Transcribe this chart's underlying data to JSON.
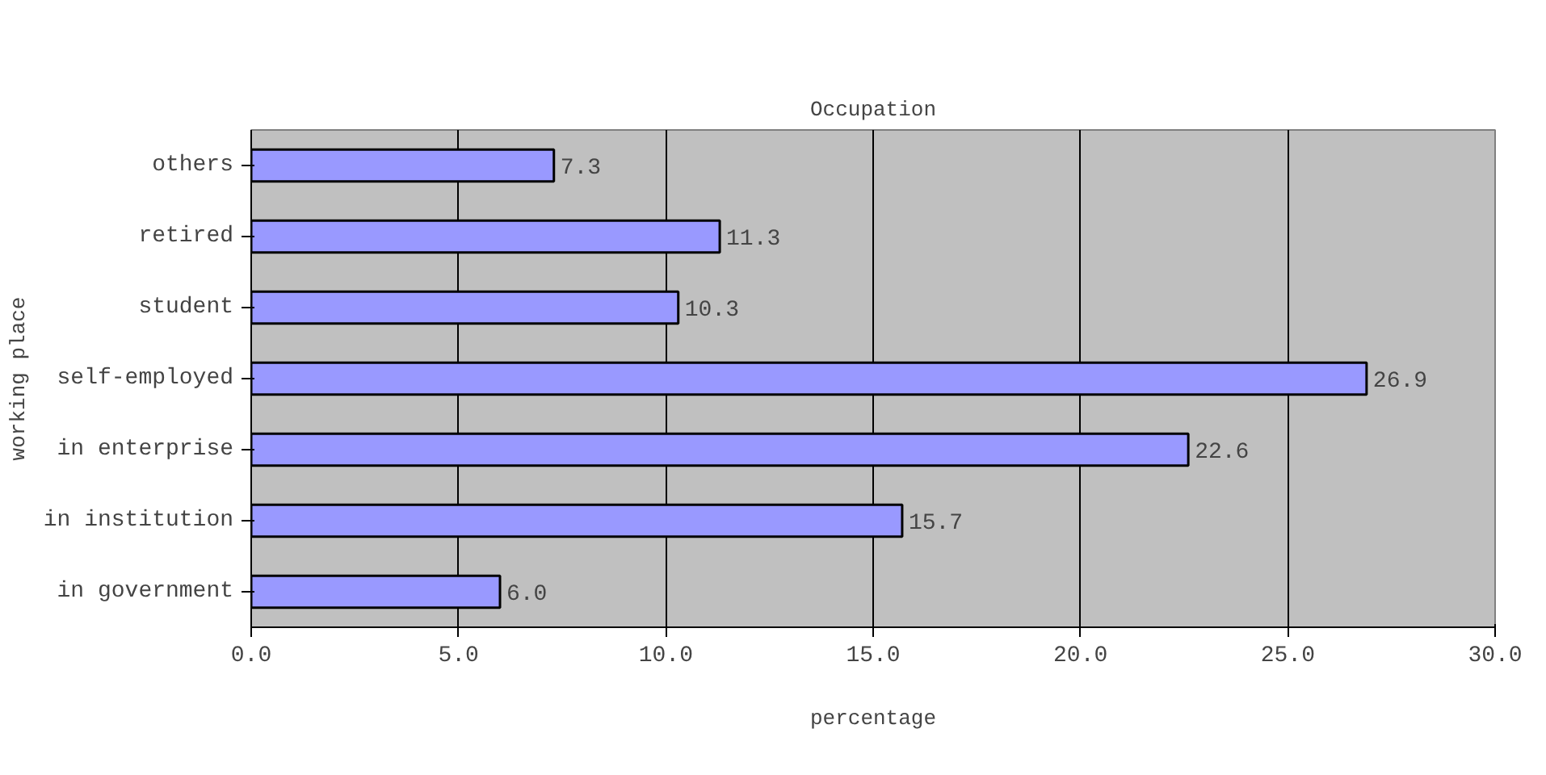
{
  "chart_data": {
    "type": "bar",
    "orientation": "horizontal",
    "title": "Occupation",
    "xlabel": "percentage",
    "ylabel": "working place",
    "categories": [
      "others",
      "retired",
      "student",
      "self-employed",
      "in enterprise",
      "in institution",
      "in government"
    ],
    "values": [
      7.3,
      11.3,
      10.3,
      26.9,
      22.6,
      15.7,
      6.0
    ],
    "value_labels": [
      "7.3",
      "11.3",
      "10.3",
      "26.9",
      "22.6",
      "15.7",
      "6.0"
    ],
    "color": "#9999ff",
    "xlim": [
      0,
      30
    ],
    "xticks": [
      {
        "value": 0,
        "label": "0.0"
      },
      {
        "value": 5,
        "label": "5.0"
      },
      {
        "value": 10,
        "label": "10.0"
      },
      {
        "value": 15,
        "label": "15.0"
      },
      {
        "value": 20,
        "label": "20.0"
      },
      {
        "value": 25,
        "label": "25.0"
      },
      {
        "value": 30,
        "label": "30.0"
      }
    ],
    "grid": "x"
  }
}
